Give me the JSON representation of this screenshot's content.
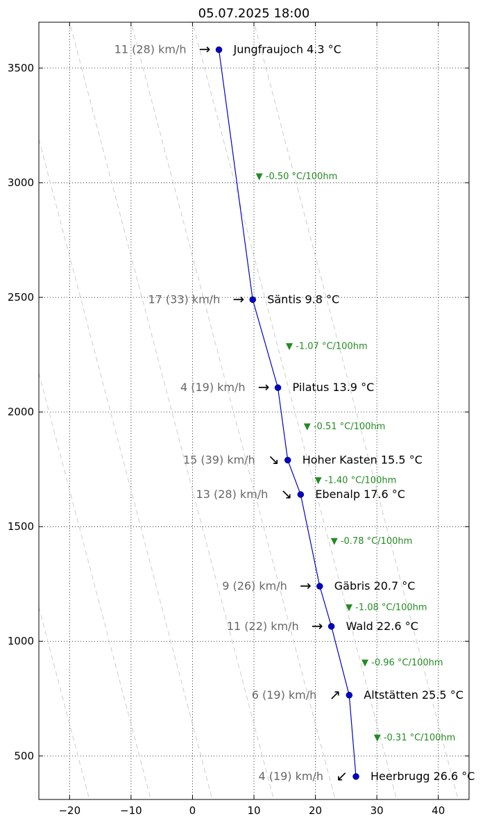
{
  "chart_data": {
    "type": "line",
    "title": "05.07.2025 18:00",
    "xlabel": "",
    "ylabel": "",
    "xlim": [
      -25,
      45
    ],
    "ylim": [
      310,
      3700
    ],
    "xticks": [
      -20,
      -10,
      0,
      10,
      20,
      30,
      40
    ],
    "xtick_labels": [
      "−20",
      "−10",
      "0",
      "10",
      "20",
      "30",
      "40"
    ],
    "yticks": [
      500,
      1000,
      1500,
      2000,
      2500,
      3000,
      3500
    ],
    "ytick_labels": [
      "500",
      "1000",
      "1500",
      "2000",
      "2500",
      "3000",
      "3500"
    ],
    "grid": true,
    "line_color": "#0000cc",
    "wind_color": "#666666",
    "lapse_color": "#228B22",
    "dry_adiabat_color": "#cccccc",
    "dry_adiabat_offsets": [
      -150,
      -140,
      -130,
      -120,
      -110,
      -100,
      -90,
      -80,
      -70,
      -60,
      -50,
      -40,
      -30,
      -20,
      -10,
      0
    ],
    "stations": [
      {
        "name": "Jungfraujoch",
        "label": "Jungfraujoch 4.3 °C",
        "temp": 4.3,
        "alt": 3580,
        "wind": "11 (28) km/h",
        "arrow": "→"
      },
      {
        "name": "Säntis",
        "label": "Säntis 9.8 °C",
        "temp": 9.8,
        "alt": 2490,
        "wind": "17 (33) km/h",
        "arrow": "→"
      },
      {
        "name": "Pilatus",
        "label": "Pilatus 13.9 °C",
        "temp": 13.9,
        "alt": 2106,
        "wind": "4 (19) km/h",
        "arrow": "→"
      },
      {
        "name": "Hoher Kasten",
        "label": "Hoher Kasten 15.5 °C",
        "temp": 15.5,
        "alt": 1790,
        "wind": "15 (39) km/h",
        "arrow": "↘"
      },
      {
        "name": "Ebenalp",
        "label": "Ebenalp 17.6 °C",
        "temp": 17.6,
        "alt": 1640,
        "wind": "13 (28) km/h",
        "arrow": "↘"
      },
      {
        "name": "Gäbris",
        "label": "Gäbris 20.7 °C",
        "temp": 20.7,
        "alt": 1240,
        "wind": "9 (26) km/h",
        "arrow": "→"
      },
      {
        "name": "Wald",
        "label": "Wald 22.6 °C",
        "temp": 22.6,
        "alt": 1065,
        "wind": "11 (22) km/h",
        "arrow": "→"
      },
      {
        "name": "Altstätten",
        "label": "Altstätten 25.5 °C",
        "temp": 25.5,
        "alt": 765,
        "wind": "6 (19) km/h",
        "arrow": "↗"
      },
      {
        "name": "Heerbrugg",
        "label": "Heerbrugg 26.6 °C",
        "temp": 26.6,
        "alt": 410,
        "wind": "4 (19) km/h",
        "arrow": "↙"
      }
    ],
    "lapse_rates": [
      {
        "text": "▼ -0.50 °C/100hm",
        "x": 10.3,
        "alt": 3030
      },
      {
        "text": "▼ -1.07 °C/100hm",
        "x": 15.2,
        "alt": 2290
      },
      {
        "text": "▼ -0.51 °C/100hm",
        "x": 18.1,
        "alt": 1940
      },
      {
        "text": "▼ -1.40 °C/100hm",
        "x": 19.9,
        "alt": 1705
      },
      {
        "text": "▼ -0.78 °C/100hm",
        "x": 22.5,
        "alt": 1440
      },
      {
        "text": "▼ -1.08 °C/100hm",
        "x": 24.9,
        "alt": 1150
      },
      {
        "text": "▼ -0.96 °C/100hm",
        "x": 27.5,
        "alt": 910
      },
      {
        "text": "▼ -0.31 °C/100hm",
        "x": 29.5,
        "alt": 583
      }
    ]
  }
}
